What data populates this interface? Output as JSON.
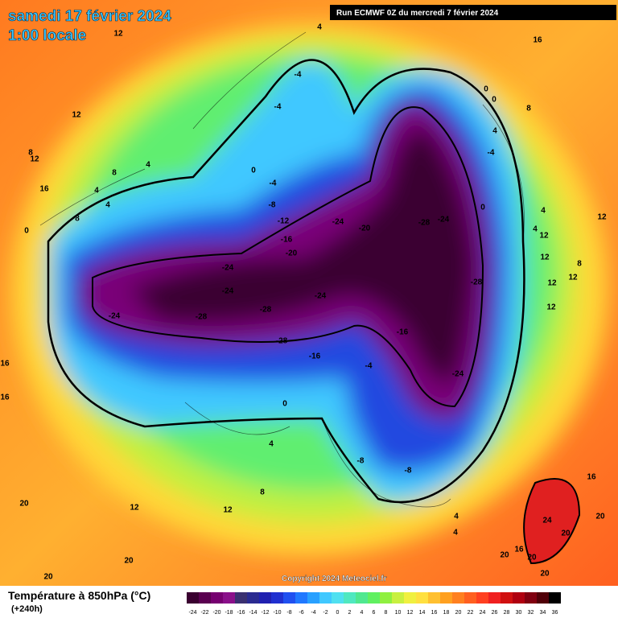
{
  "header": {
    "date": "samedi 17 février 2024",
    "time": "1:00 locale",
    "run": "Run ECMWF 0Z du mercredi 7 février 2024"
  },
  "copyright": "Copyright 2024 Meteociel.fr",
  "legend": {
    "title": "Température à 850hPa (°C)",
    "subtitle": "(+240h)",
    "ticks": [
      -24,
      -22,
      -20,
      -18,
      -16,
      -14,
      -12,
      -10,
      -8,
      -6,
      -4,
      -2,
      0,
      2,
      4,
      6,
      8,
      10,
      12,
      14,
      16,
      18,
      20,
      22,
      24,
      26,
      28,
      30,
      32,
      34,
      36
    ],
    "colors": [
      "#3a0030",
      "#5a0050",
      "#760070",
      "#8a108a",
      "#3a3070",
      "#2a2a90",
      "#2020b0",
      "#2030d0",
      "#2050f0",
      "#2078ff",
      "#28a0ff",
      "#40c8ff",
      "#50e0f0",
      "#50e8c0",
      "#50e890",
      "#60f060",
      "#90f040",
      "#c8f040",
      "#f0f040",
      "#ffe040",
      "#ffc030",
      "#ffa020",
      "#ff8020",
      "#ff6020",
      "#ff4020",
      "#f02020",
      "#d01010",
      "#b00010",
      "#800010",
      "#500008",
      "#000000"
    ]
  },
  "contour_labels": [
    12,
    4,
    16,
    -4,
    -4,
    12,
    0,
    0,
    8,
    4,
    -4,
    8,
    12,
    4,
    8,
    0,
    -4,
    16,
    4,
    4,
    -8,
    0,
    4,
    12,
    8,
    -12,
    -24,
    -20,
    -28,
    -24,
    4,
    12,
    0,
    -16,
    -20,
    12,
    8,
    -24,
    12,
    -24,
    -28,
    -24,
    12,
    -28,
    -24,
    -28,
    12,
    -16,
    -28,
    -16,
    -4,
    16,
    -24,
    16,
    0,
    -8,
    -8,
    4,
    8,
    16,
    12,
    12,
    4,
    20,
    20,
    24,
    4,
    20,
    16,
    20,
    20,
    20,
    20,
    20
  ]
}
